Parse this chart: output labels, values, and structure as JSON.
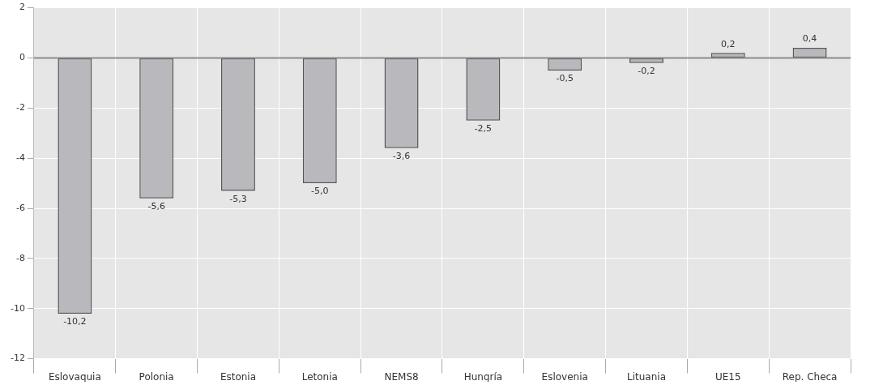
{
  "chart_data": {
    "type": "bar",
    "categories": [
      "Eslovaquia",
      "Polonia",
      "Estonia",
      "Letonia",
      "NEMS8",
      "Hungría",
      "Eslovenia",
      "Lituania",
      "UE15",
      "Rep. Checa"
    ],
    "values": [
      -10.2,
      -5.6,
      -5.3,
      -5.0,
      -3.6,
      -2.5,
      -0.5,
      -0.2,
      0.2,
      0.4
    ],
    "value_labels": [
      "-10,2",
      "-5,6",
      "-5,3",
      "-5,0",
      "-3,6",
      "-2,5",
      "-0,5",
      "-0,2",
      "0,2",
      "0,4"
    ],
    "color": "#b9b9bd",
    "ylim": [
      -12,
      2
    ],
    "yticks": [
      -12,
      -10,
      -8,
      -6,
      -4,
      -2,
      0,
      2
    ],
    "grid": true,
    "ref_lines": [
      {
        "axis": "y",
        "value": 0,
        "color": "#8c8c8c"
      }
    ]
  }
}
